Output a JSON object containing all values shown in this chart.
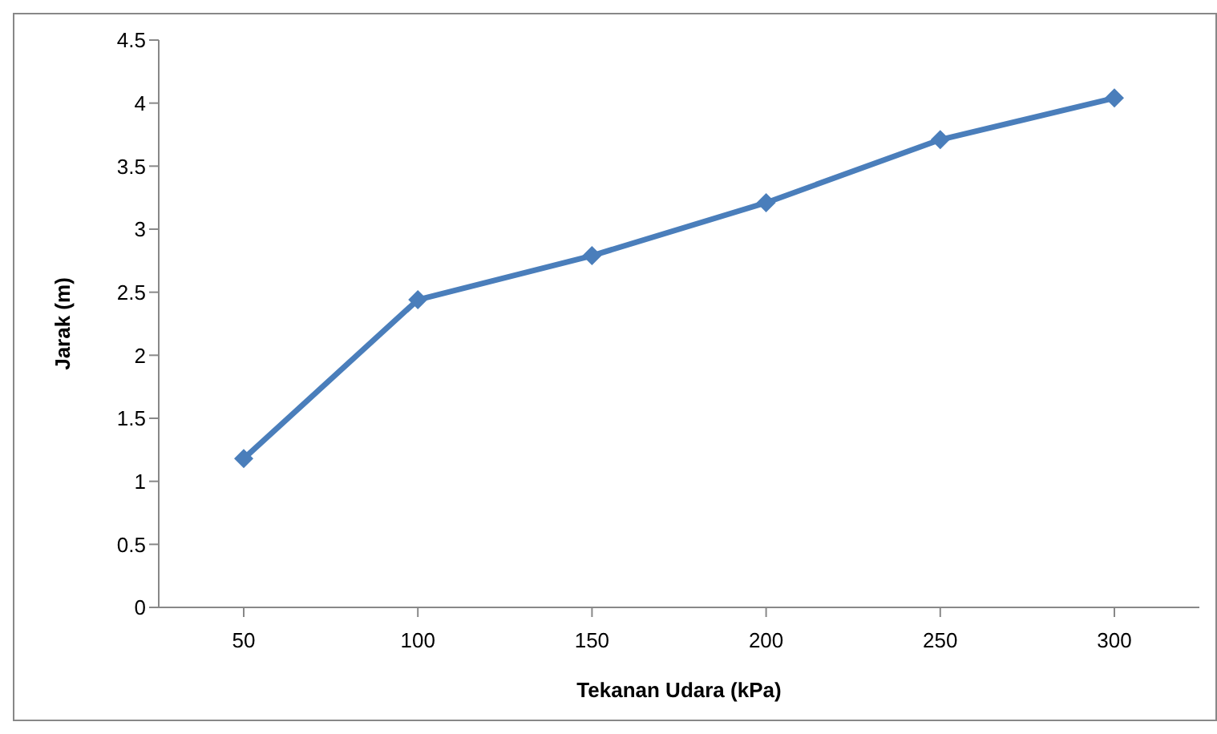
{
  "chart_data": {
    "type": "line",
    "xlabel": "Tekanan Udara (kPa)",
    "ylabel": "Jarak (m)",
    "categories": [
      "50",
      "100",
      "150",
      "200",
      "250",
      "300"
    ],
    "series": [
      {
        "color": "#4a7ebb",
        "values": [
          1.18,
          2.44,
          2.79,
          3.21,
          3.71,
          4.04
        ]
      }
    ],
    "ylim": [
      0,
      4.5
    ],
    "yticks": [
      0,
      0.5,
      1,
      1.5,
      2,
      2.5,
      3,
      3.5,
      4,
      4.5
    ],
    "marker": "diamond",
    "line_style": "solid"
  }
}
